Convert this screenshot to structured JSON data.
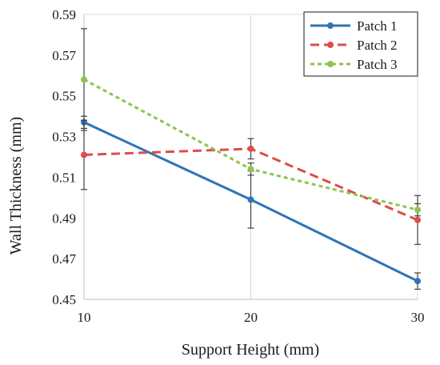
{
  "chart_data": {
    "type": "line",
    "title": "",
    "xlabel": "Support Height (mm)",
    "ylabel": "Wall Thickness (mm)",
    "x": [
      10,
      20,
      30
    ],
    "x_ticks": [
      "10",
      "20",
      "30"
    ],
    "y_ticks": [
      "0.45",
      "0.47",
      "0.49",
      "0.51",
      "0.53",
      "0.55",
      "0.57",
      "0.59"
    ],
    "xlim": [
      10,
      30
    ],
    "ylim": [
      0.45,
      0.59
    ],
    "grid": "vertical",
    "legend_position": "top-right",
    "series": [
      {
        "name": "Patch 1",
        "color": "#2e75b6",
        "dash": "solid",
        "values": [
          0.537,
          0.499,
          0.459
        ],
        "errors": [
          0.003,
          0.014,
          0.004
        ]
      },
      {
        "name": "Patch 2",
        "color": "#e04b4b",
        "dash": "dashed",
        "values": [
          0.521,
          0.524,
          0.489
        ],
        "errors": [
          0.017,
          0.005,
          0.012
        ]
      },
      {
        "name": "Patch 3",
        "color": "#8dc44e",
        "dash": "dotted",
        "values": [
          0.558,
          0.514,
          0.494
        ],
        "errors": [
          0.025,
          0.003,
          0.003
        ]
      }
    ]
  }
}
